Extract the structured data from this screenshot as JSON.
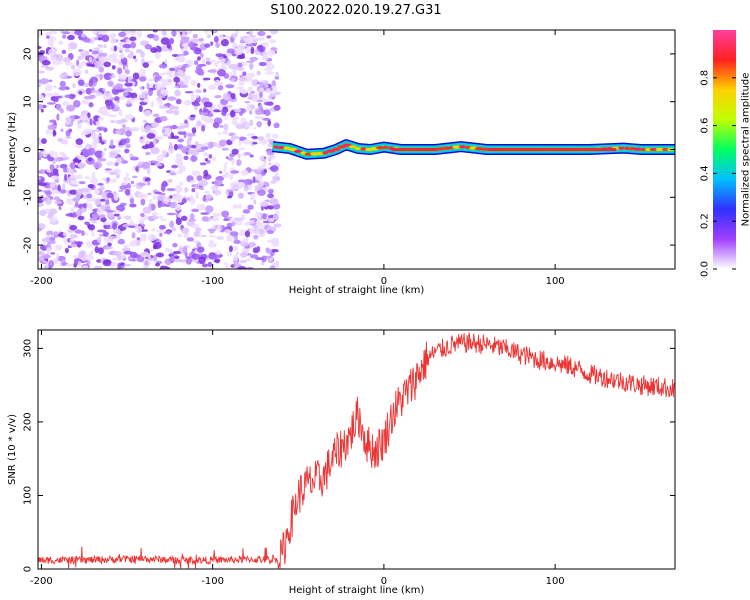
{
  "title": "S100.2022.020.19.27.G31",
  "colors": {
    "snr_line": "#ee3333",
    "noise": "#8a3cf0"
  },
  "chart_data": [
    {
      "type": "heatmap",
      "xlabel": "Height of straight line (km)",
      "ylabel": "Frequency (Hz)",
      "xlim": [
        -202,
        170
      ],
      "ylim": [
        -25,
        25
      ],
      "xticks": [
        -200,
        -100,
        0,
        100
      ],
      "yticks": [
        -20,
        -10,
        0,
        10,
        20
      ],
      "xtick_labels": [
        "-200",
        "-100",
        "0",
        "100"
      ],
      "ytick_labels": [
        "-20",
        "-10",
        "0",
        "10",
        "20"
      ],
      "noise_region_x": [
        -202,
        -62
      ],
      "signal_start_x": -65,
      "signal_trace": [
        [
          -65,
          0.6
        ],
        [
          -55,
          0.2
        ],
        [
          -45,
          -1.0
        ],
        [
          -35,
          -0.8
        ],
        [
          -28,
          0.0
        ],
        [
          -22,
          1.0
        ],
        [
          -15,
          0.2
        ],
        [
          -8,
          0.0
        ],
        [
          0,
          0.5
        ],
        [
          10,
          0.0
        ],
        [
          30,
          0.0
        ],
        [
          45,
          0.6
        ],
        [
          60,
          0.0
        ],
        [
          90,
          0.0
        ],
        [
          120,
          0.0
        ],
        [
          140,
          0.3
        ],
        [
          150,
          0.0
        ],
        [
          170,
          0.0
        ]
      ],
      "colorbar": {
        "label": "Normalized spectral amplitude",
        "range": [
          0,
          1
        ],
        "ticks": [
          0.0,
          0.2,
          0.4,
          0.6,
          0.8
        ],
        "tick_labels": [
          "0.0",
          "0.2",
          "0.4",
          "0.6",
          "0.8"
        ],
        "colormap": [
          "#ffffff",
          "#a040ff",
          "#3030ff",
          "#00c0ff",
          "#00ff60",
          "#c0ff00",
          "#ffd000",
          "#ff2020",
          "#ff40a0"
        ]
      }
    },
    {
      "type": "line",
      "xlabel": "Height of straight line (km)",
      "ylabel": "SNR (10 * v/v)",
      "xlim": [
        -202,
        170
      ],
      "ylim": [
        0,
        325
      ],
      "xticks": [
        -200,
        -100,
        0,
        100
      ],
      "yticks": [
        0,
        100,
        200,
        300
      ],
      "xtick_labels": [
        "-200",
        "-100",
        "0",
        "100"
      ],
      "ytick_labels": [
        "0",
        "100",
        "200",
        "300"
      ],
      "series": [
        {
          "color": "#ee3333",
          "x": [
            -202,
            -180,
            -160,
            -140,
            -120,
            -100,
            -80,
            -60,
            -55,
            -50,
            -45,
            -40,
            -35,
            -30,
            -25,
            -20,
            -15,
            -10,
            -5,
            0,
            5,
            10,
            15,
            20,
            25,
            30,
            40,
            50,
            60,
            70,
            80,
            90,
            100,
            110,
            120,
            130,
            140,
            150,
            160,
            170
          ],
          "y": [
            12,
            12,
            13,
            14,
            12,
            12,
            13,
            13,
            60,
            100,
            115,
            120,
            125,
            150,
            165,
            180,
            210,
            170,
            160,
            175,
            210,
            230,
            245,
            265,
            285,
            295,
            305,
            308,
            305,
            300,
            292,
            285,
            280,
            275,
            265,
            260,
            255,
            250,
            248,
            245
          ]
        }
      ]
    }
  ]
}
